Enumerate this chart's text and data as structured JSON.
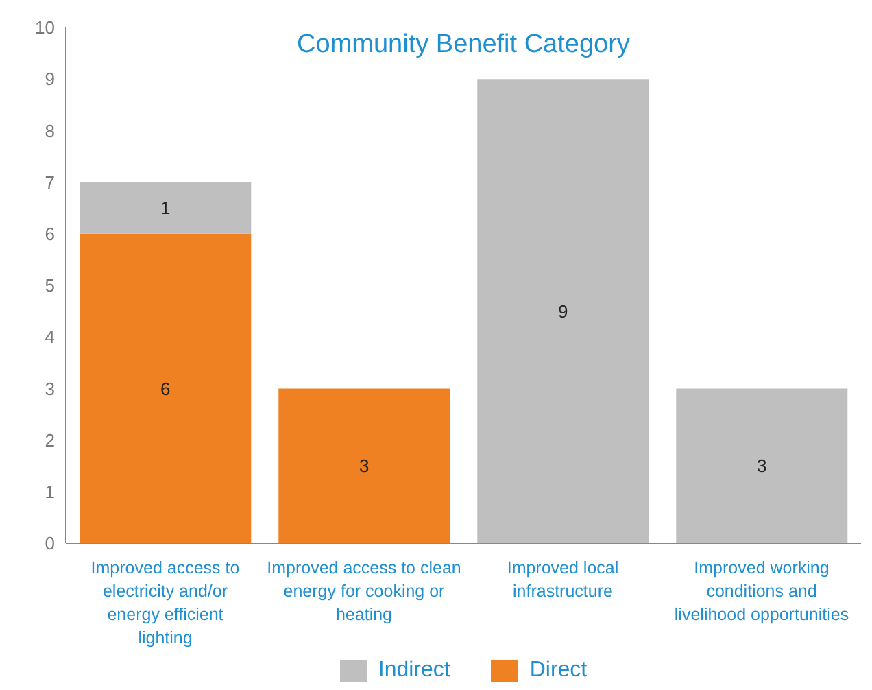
{
  "chart_data": {
    "type": "bar",
    "title": "Community Benefit Category",
    "stacked": true,
    "categories": [
      "Improved access to electricity and/or energy efficient lighting",
      "Improved access to clean energy for cooking or heating",
      "Improved local infrastructure",
      "Improved working conditions and livelihood opportunities"
    ],
    "series": [
      {
        "name": "Direct",
        "color": "#f08122",
        "values": [
          6,
          3,
          null,
          null
        ]
      },
      {
        "name": "Indirect",
        "color": "#bfbfbf",
        "values": [
          1,
          null,
          9,
          3
        ]
      }
    ],
    "ylim": [
      0,
      10
    ],
    "yticks": [
      0,
      1,
      2,
      3,
      4,
      5,
      6,
      7,
      8,
      9,
      10
    ],
    "grid": false,
    "legend": "bottom",
    "data_labels": true
  }
}
